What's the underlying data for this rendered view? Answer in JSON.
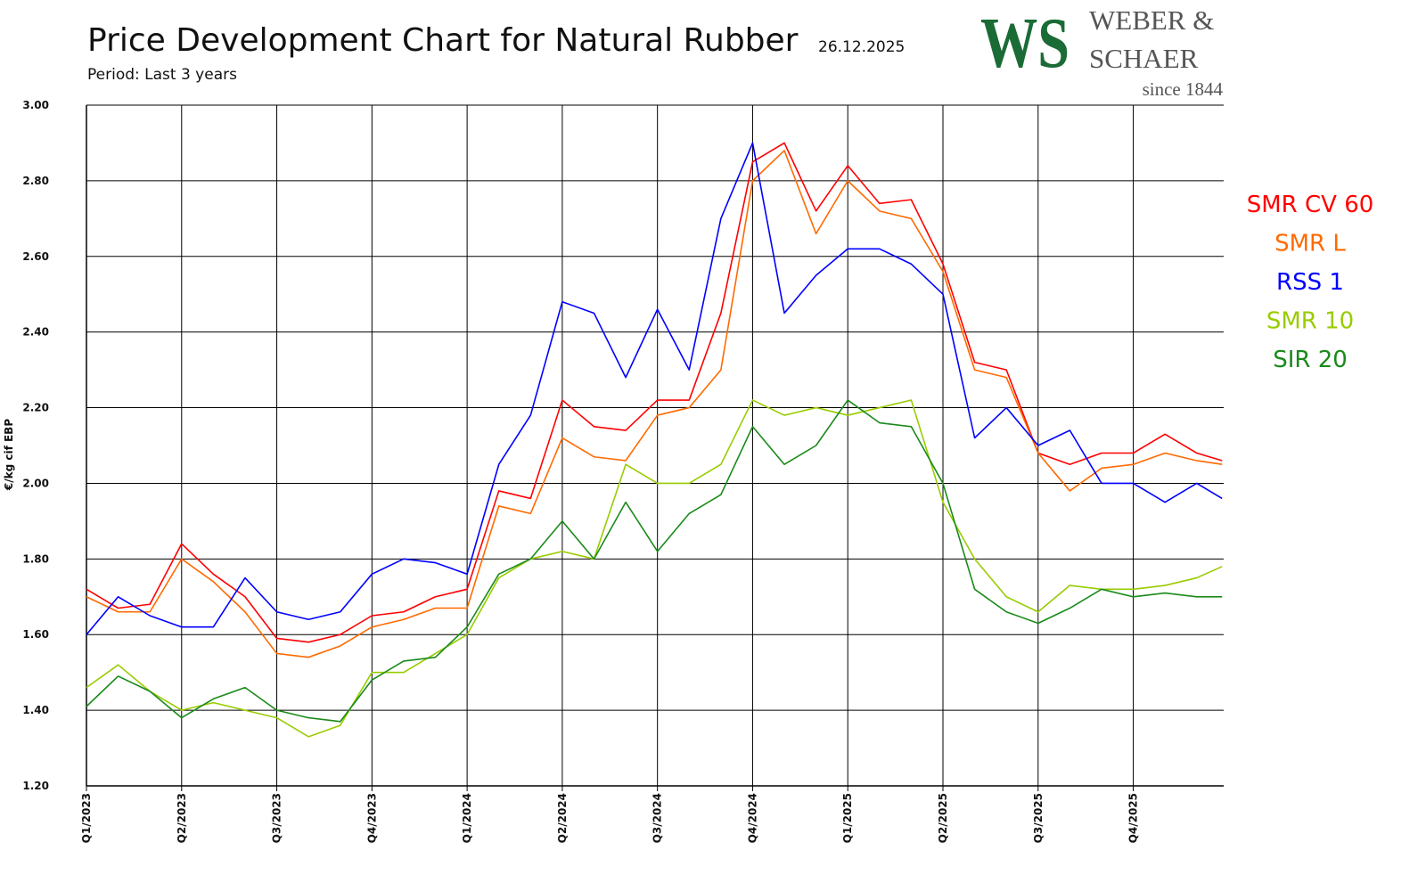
{
  "chart_data": {
    "type": "line",
    "title": "Price Development Chart for Natural Rubber",
    "date": "26.12.2025",
    "subtitle": "Period: Last 3 years",
    "y_label": "€/kg cif EBP",
    "legend": "right",
    "grid": true,
    "x": [
      0,
      1,
      2,
      3,
      4,
      5,
      6,
      7,
      8,
      9,
      10,
      11,
      12,
      13,
      14,
      15,
      16,
      17,
      18,
      19,
      20,
      21,
      22,
      23,
      24,
      25,
      26,
      27,
      28,
      29,
      30,
      31,
      32,
      33,
      34,
      35,
      35.8
    ],
    "xlim": [
      0,
      35.85
    ],
    "xticks": [
      {
        "value": 0,
        "label": "Q1/2023"
      },
      {
        "value": 3,
        "label": "Q2/2023"
      },
      {
        "value": 6,
        "label": "Q3/2023"
      },
      {
        "value": 9,
        "label": "Q4/2023"
      },
      {
        "value": 12,
        "label": "Q1/2024"
      },
      {
        "value": 15,
        "label": "Q2/2024"
      },
      {
        "value": 18,
        "label": "Q3/2024"
      },
      {
        "value": 21,
        "label": "Q4/2024"
      },
      {
        "value": 24,
        "label": "Q1/2025"
      },
      {
        "value": 27,
        "label": "Q2/2025"
      },
      {
        "value": 30,
        "label": "Q3/2025"
      },
      {
        "value": 33,
        "label": "Q4/2025"
      }
    ],
    "ylim": [
      1.2,
      3.0
    ],
    "yticks": [
      {
        "value": 1.2,
        "label": "1.20"
      },
      {
        "value": 1.4,
        "label": "1.40"
      },
      {
        "value": 1.6,
        "label": "1.60"
      },
      {
        "value": 1.8,
        "label": "1.80"
      },
      {
        "value": 2.0,
        "label": "2.00"
      },
      {
        "value": 2.2,
        "label": "2.20"
      },
      {
        "value": 2.4,
        "label": "2.40"
      },
      {
        "value": 2.6,
        "label": "2.60"
      },
      {
        "value": 2.8,
        "label": "2.80"
      },
      {
        "value": 3.0,
        "label": "3.00"
      }
    ],
    "series": [
      {
        "name": "SMR CV 60",
        "color": "#ff0000",
        "values": [
          1.72,
          1.67,
          1.68,
          1.84,
          1.76,
          1.7,
          1.59,
          1.58,
          1.6,
          1.65,
          1.66,
          1.7,
          1.72,
          1.98,
          1.96,
          2.22,
          2.15,
          2.14,
          2.22,
          2.22,
          2.45,
          2.85,
          2.9,
          2.72,
          2.84,
          2.74,
          2.75,
          2.58,
          2.32,
          2.3,
          2.08,
          2.05,
          2.08,
          2.08,
          2.13,
          2.08,
          2.06
        ]
      },
      {
        "name": "SMR L",
        "color": "#ff6a00",
        "values": [
          1.7,
          1.66,
          1.66,
          1.8,
          1.74,
          1.66,
          1.55,
          1.54,
          1.57,
          1.62,
          1.64,
          1.67,
          1.67,
          1.94,
          1.92,
          2.12,
          2.07,
          2.06,
          2.18,
          2.2,
          2.3,
          2.8,
          2.88,
          2.66,
          2.8,
          2.72,
          2.7,
          2.56,
          2.3,
          2.28,
          2.08,
          1.98,
          2.04,
          2.05,
          2.08,
          2.06,
          2.05
        ]
      },
      {
        "name": "RSS 1",
        "color": "#0000ff",
        "values": [
          1.6,
          1.7,
          1.65,
          1.62,
          1.62,
          1.75,
          1.66,
          1.64,
          1.66,
          1.76,
          1.8,
          1.79,
          1.76,
          2.05,
          2.18,
          2.48,
          2.45,
          2.28,
          2.46,
          2.3,
          2.7,
          2.9,
          2.45,
          2.55,
          2.62,
          2.62,
          2.58,
          2.5,
          2.12,
          2.2,
          2.1,
          2.14,
          2.0,
          2.0,
          1.95,
          2.0,
          1.96
        ]
      },
      {
        "name": "SMR 10",
        "color": "#99cc00",
        "values": [
          1.46,
          1.52,
          1.45,
          1.4,
          1.42,
          1.4,
          1.38,
          1.33,
          1.36,
          1.5,
          1.5,
          1.55,
          1.6,
          1.75,
          1.8,
          1.82,
          1.8,
          2.05,
          2.0,
          2.0,
          2.05,
          2.22,
          2.18,
          2.2,
          2.18,
          2.2,
          2.22,
          1.95,
          1.8,
          1.7,
          1.66,
          1.73,
          1.72,
          1.72,
          1.73,
          1.75,
          1.78
        ]
      },
      {
        "name": "SIR 20",
        "color": "#1a8a1a",
        "values": [
          1.41,
          1.49,
          1.45,
          1.38,
          1.43,
          1.46,
          1.4,
          1.38,
          1.37,
          1.48,
          1.53,
          1.54,
          1.62,
          1.76,
          1.8,
          1.9,
          1.8,
          1.95,
          1.82,
          1.92,
          1.97,
          2.15,
          2.05,
          2.1,
          2.22,
          2.16,
          2.15,
          2.0,
          1.72,
          1.66,
          1.63,
          1.67,
          1.72,
          1.7,
          1.71,
          1.7,
          1.7
        ]
      }
    ]
  },
  "logo": {
    "mark": "WS",
    "name_line1": "WEBER &",
    "name_line2": "SCHAER",
    "tagline": "since 1844"
  }
}
